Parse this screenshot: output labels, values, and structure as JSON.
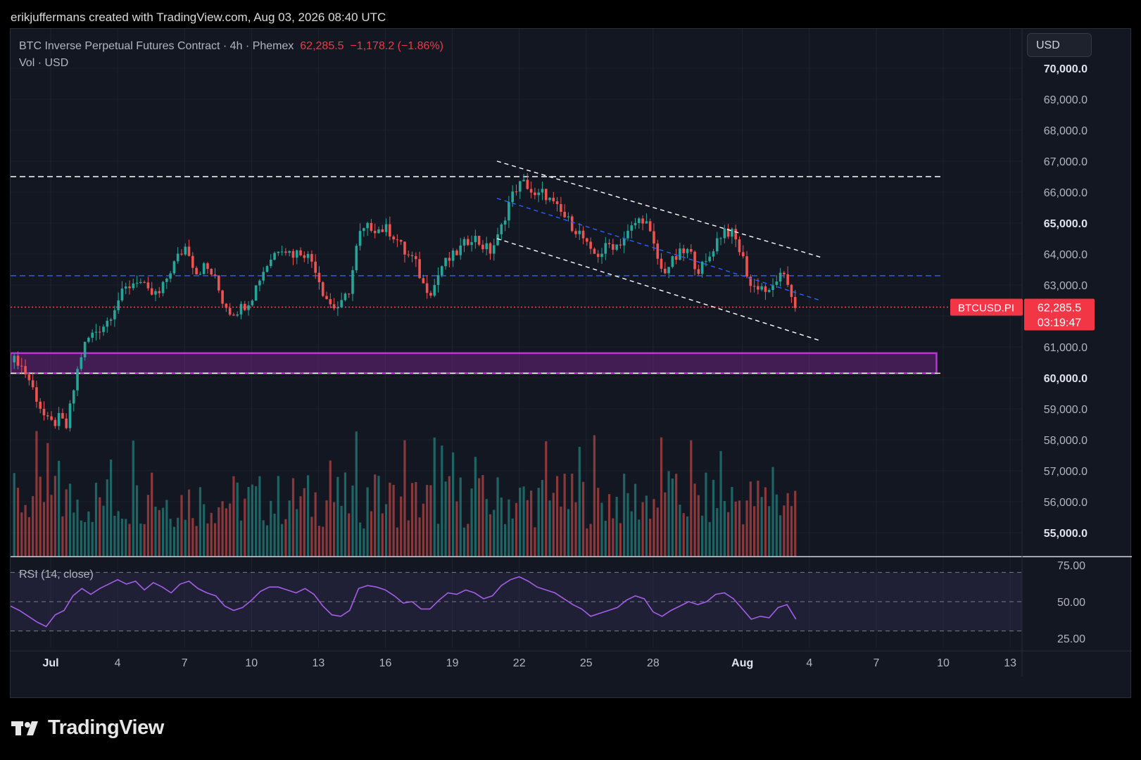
{
  "header": {
    "attribution": "erikjuffermans created with TradingView.com, Aug 03, 2026 08:40 UTC"
  },
  "legend": {
    "symbol": "BTC Inverse Perpetual Futures Contract · 4h · Phemex",
    "last": "62,285.5",
    "change": "−1,178.2 (−1.86%)",
    "volume_label": "Vol · USD"
  },
  "currency": "USD",
  "price_tag": {
    "symbol": "BTCUSD.PI",
    "price": "62,285.5",
    "countdown": "03:19:47"
  },
  "rsi_label": "RSI (14, close)",
  "logo_text": "TradingView",
  "colors": {
    "up": "#26a69a",
    "down": "#ef5350",
    "rsi": "#a45ee5",
    "zone": "#9c27b0",
    "channel_mid": "#2962ff",
    "background": "#131722"
  },
  "chart_data": {
    "type": "candlestick",
    "timeframe": "4h",
    "price_axis": {
      "min": 54300,
      "max": 70500,
      "ticks": [
        "70,000.0",
        "69,000.0",
        "68,000.0",
        "67,000.0",
        "66,000.0",
        "65,000.0",
        "64,000.0",
        "63,000.0",
        "62,000.0",
        "61,000.0",
        "60,000.0",
        "59,000.0",
        "58,000.0",
        "57,000.0",
        "56,000.0",
        "55,000.0"
      ],
      "tick_values": [
        70000,
        69000,
        68000,
        67000,
        66000,
        65000,
        64000,
        63000,
        62000,
        61000,
        60000,
        59000,
        58000,
        57000,
        56000,
        55000
      ]
    },
    "rsi_axis": {
      "ticks": [
        "75.00",
        "50.00",
        "25.00"
      ],
      "tick_values": [
        75,
        50,
        25
      ],
      "bands": [
        30,
        50,
        70
      ]
    },
    "time_axis": {
      "labels": [
        "Jul",
        "4",
        "7",
        "10",
        "13",
        "16",
        "19",
        "22",
        "25",
        "28",
        "Aug",
        "4",
        "7",
        "10",
        "13"
      ],
      "days_from_jun30": [
        0,
        3,
        6,
        9,
        12,
        15,
        18,
        21,
        24,
        27,
        31,
        34,
        37,
        40,
        43
      ]
    },
    "close_path": [
      [
        -1.8,
        60500
      ],
      [
        -1.5,
        60600
      ],
      [
        -1.0,
        60000
      ],
      [
        -0.6,
        59300
      ],
      [
        -0.2,
        58600
      ],
      [
        0.1,
        58500
      ],
      [
        0.4,
        58700
      ],
      [
        0.7,
        58400
      ],
      [
        1.0,
        59500
      ],
      [
        1.3,
        60600
      ],
      [
        1.6,
        61200
      ],
      [
        2.0,
        61500
      ],
      [
        2.5,
        61800
      ],
      [
        3.0,
        62500
      ],
      [
        3.4,
        62900
      ],
      [
        3.9,
        63200
      ],
      [
        4.4,
        62700
      ],
      [
        4.9,
        62700
      ],
      [
        5.3,
        63400
      ],
      [
        5.7,
        63900
      ],
      [
        6.1,
        64300
      ],
      [
        6.5,
        63400
      ],
      [
        6.9,
        63600
      ],
      [
        7.3,
        63300
      ],
      [
        7.7,
        62500
      ],
      [
        8.1,
        62100
      ],
      [
        8.6,
        62300
      ],
      [
        9.0,
        62600
      ],
      [
        9.4,
        63300
      ],
      [
        9.8,
        63800
      ],
      [
        10.3,
        64300
      ],
      [
        10.8,
        64000
      ],
      [
        11.3,
        64100
      ],
      [
        11.8,
        63700
      ],
      [
        12.2,
        62800
      ],
      [
        12.6,
        62300
      ],
      [
        13.0,
        62300
      ],
      [
        13.4,
        62900
      ],
      [
        13.8,
        64600
      ],
      [
        14.3,
        64900
      ],
      [
        14.7,
        64800
      ],
      [
        15.1,
        64800
      ],
      [
        15.5,
        64500
      ],
      [
        15.9,
        64000
      ],
      [
        16.3,
        63800
      ],
      [
        16.7,
        63000
      ],
      [
        17.1,
        62800
      ],
      [
        17.5,
        63600
      ],
      [
        18.0,
        63900
      ],
      [
        18.4,
        64200
      ],
      [
        18.9,
        64600
      ],
      [
        19.3,
        64300
      ],
      [
        19.7,
        64100
      ],
      [
        20.1,
        64600
      ],
      [
        20.5,
        65600
      ],
      [
        20.9,
        66200
      ],
      [
        21.3,
        66300
      ],
      [
        21.7,
        65800
      ],
      [
        22.1,
        66000
      ],
      [
        22.5,
        65600
      ],
      [
        22.9,
        65300
      ],
      [
        23.4,
        64900
      ],
      [
        23.8,
        64600
      ],
      [
        24.2,
        64000
      ],
      [
        24.6,
        64000
      ],
      [
        25.0,
        64300
      ],
      [
        25.4,
        64300
      ],
      [
        25.8,
        64600
      ],
      [
        26.2,
        65000
      ],
      [
        26.6,
        65200
      ],
      [
        27.0,
        64300
      ],
      [
        27.4,
        63400
      ],
      [
        27.8,
        63700
      ],
      [
        28.2,
        64000
      ],
      [
        28.6,
        64100
      ],
      [
        29.0,
        63500
      ],
      [
        29.4,
        63700
      ],
      [
        29.8,
        64400
      ],
      [
        30.2,
        64800
      ],
      [
        30.6,
        64600
      ],
      [
        31.0,
        63900
      ],
      [
        31.4,
        62900
      ],
      [
        31.8,
        63000
      ],
      [
        32.2,
        62700
      ],
      [
        32.6,
        63300
      ],
      [
        33.0,
        63100
      ],
      [
        33.4,
        62300
      ]
    ],
    "rsi_path": [
      [
        -1.8,
        47
      ],
      [
        -1.4,
        44
      ],
      [
        -1.0,
        40
      ],
      [
        -0.6,
        36
      ],
      [
        -0.2,
        33
      ],
      [
        0.2,
        41
      ],
      [
        0.6,
        44
      ],
      [
        1.0,
        54
      ],
      [
        1.4,
        59
      ],
      [
        1.8,
        55
      ],
      [
        2.2,
        59
      ],
      [
        2.6,
        62
      ],
      [
        3.0,
        65
      ],
      [
        3.4,
        62
      ],
      [
        3.8,
        64
      ],
      [
        4.2,
        58
      ],
      [
        4.6,
        63
      ],
      [
        5.0,
        60
      ],
      [
        5.4,
        56
      ],
      [
        5.8,
        62
      ],
      [
        6.2,
        64
      ],
      [
        6.6,
        59
      ],
      [
        7.0,
        56
      ],
      [
        7.4,
        54
      ],
      [
        7.8,
        47
      ],
      [
        8.2,
        44
      ],
      [
        8.6,
        46
      ],
      [
        9.0,
        51
      ],
      [
        9.4,
        57
      ],
      [
        9.8,
        60
      ],
      [
        10.2,
        60
      ],
      [
        10.6,
        58
      ],
      [
        11.0,
        56
      ],
      [
        11.4,
        59
      ],
      [
        11.8,
        55
      ],
      [
        12.2,
        47
      ],
      [
        12.6,
        41
      ],
      [
        13.0,
        40
      ],
      [
        13.4,
        44
      ],
      [
        13.8,
        59
      ],
      [
        14.2,
        61
      ],
      [
        14.6,
        60
      ],
      [
        15.0,
        58
      ],
      [
        15.4,
        54
      ],
      [
        15.8,
        49
      ],
      [
        16.2,
        50
      ],
      [
        16.6,
        45
      ],
      [
        17.0,
        45
      ],
      [
        17.4,
        51
      ],
      [
        17.8,
        56
      ],
      [
        18.2,
        55
      ],
      [
        18.6,
        58
      ],
      [
        19.0,
        56
      ],
      [
        19.4,
        52
      ],
      [
        19.8,
        54
      ],
      [
        20.2,
        61
      ],
      [
        20.6,
        65
      ],
      [
        21.0,
        67
      ],
      [
        21.4,
        64
      ],
      [
        21.8,
        60
      ],
      [
        22.2,
        58
      ],
      [
        22.6,
        56
      ],
      [
        23.0,
        52
      ],
      [
        23.4,
        48
      ],
      [
        23.8,
        45
      ],
      [
        24.2,
        40
      ],
      [
        24.6,
        42
      ],
      [
        25.0,
        44
      ],
      [
        25.4,
        46
      ],
      [
        25.8,
        51
      ],
      [
        26.2,
        54
      ],
      [
        26.6,
        52
      ],
      [
        27.0,
        43
      ],
      [
        27.4,
        40
      ],
      [
        27.8,
        44
      ],
      [
        28.2,
        47
      ],
      [
        28.6,
        50
      ],
      [
        29.0,
        48
      ],
      [
        29.4,
        50
      ],
      [
        29.8,
        55
      ],
      [
        30.2,
        56
      ],
      [
        30.6,
        52
      ],
      [
        31.0,
        45
      ],
      [
        31.4,
        38
      ],
      [
        31.8,
        40
      ],
      [
        32.2,
        39
      ],
      [
        32.6,
        46
      ],
      [
        33.0,
        48
      ],
      [
        33.4,
        38
      ]
    ],
    "levels": [
      {
        "type": "horizontal",
        "style": "dashed",
        "color": "#ffffff",
        "price": 66500
      },
      {
        "type": "horizontal",
        "style": "dashed",
        "color": "#2962ff",
        "price": 63300
      },
      {
        "type": "horizontal",
        "style": "dotted",
        "color": "#ef5350",
        "price": 62285.5
      },
      {
        "type": "horizontal",
        "style": "dashed",
        "color": "#ffffff",
        "price": 60150
      }
    ],
    "zone": {
      "price_top": 60800,
      "price_bottom": 60150,
      "x_start": -1.8,
      "x_end": 39.7
    },
    "channel": [
      {
        "style": "dashed",
        "color": "#ffffff",
        "x0": 20.0,
        "y0": 67000,
        "x1": 34.5,
        "y1": 63900
      },
      {
        "style": "dashed",
        "color": "#2962ff",
        "x0": 20.0,
        "y0": 65800,
        "x1": 34.5,
        "y1": 62500
      },
      {
        "style": "dashed",
        "color": "#ffffff",
        "x0": 20.0,
        "y0": 64500,
        "x1": 34.5,
        "y1": 61200
      }
    ]
  }
}
